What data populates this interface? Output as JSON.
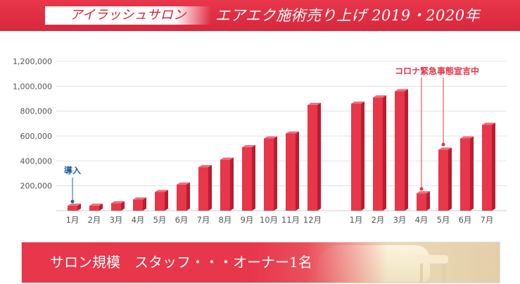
{
  "header": {
    "chip": "アイラッシュサロン",
    "title": "エアエク施術売り上げ 2019・2020年"
  },
  "colors": {
    "bar": "#e8364a",
    "bar_shadow": "#b81e30",
    "bar_top": "#f26b7b",
    "annotation_intro": "#1f5fa8",
    "annotation_emergency": "#e8364a"
  },
  "chart_data": {
    "type": "bar",
    "title": "エアエク施術売り上げ 2019・2020年",
    "xlabel": "",
    "ylabel": "",
    "ylim": [
      0,
      1200000
    ],
    "yticks": [
      "200,000",
      "400,000",
      "600,000",
      "800,000",
      "1,000,000",
      "1,200,000"
    ],
    "grid": true,
    "categories": [
      "1月",
      "2月",
      "3月",
      "4月",
      "5月",
      "6月",
      "7月",
      "8月",
      "9月",
      "10月",
      "11月",
      "12月",
      "1月",
      "2月",
      "3月",
      "4月",
      "5月",
      "6月",
      "7月"
    ],
    "groups": [
      {
        "year": "2019",
        "count": 12
      },
      {
        "year": "2020",
        "count": 7
      }
    ],
    "values": [
      40000,
      40000,
      60000,
      90000,
      150000,
      210000,
      350000,
      410000,
      510000,
      580000,
      620000,
      850000,
      860000,
      910000,
      960000,
      140000,
      490000,
      580000,
      690000
    ],
    "annotations": [
      {
        "text": "導入",
        "category_index": 0
      },
      {
        "text": "コロナ緊急事態宣言中",
        "category_index": [
          15,
          16
        ]
      }
    ]
  },
  "banner": {
    "text": "サロン規模　スタッフ・・・オーナー1名"
  }
}
